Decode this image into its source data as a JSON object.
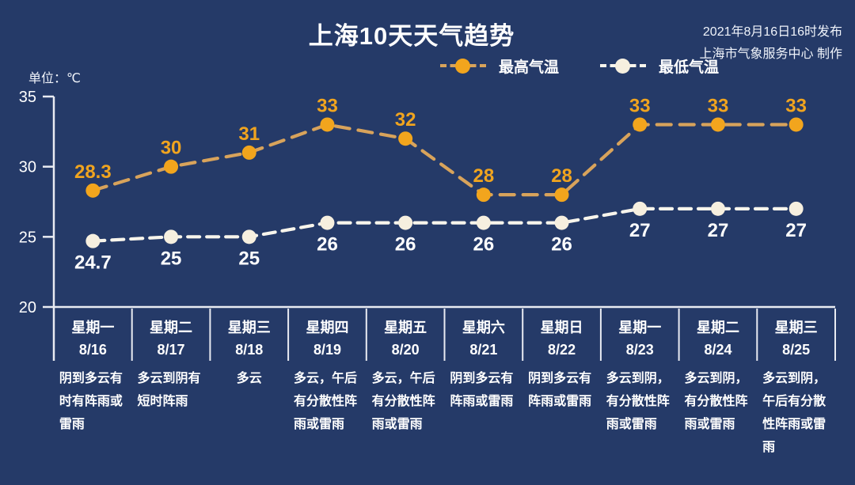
{
  "header": {
    "title": "上海10天天气趋势",
    "publish_line1": "2021年8月16日16时发布",
    "publish_line2": "上海市气象服务中心 制作",
    "unit_label": "单位：℃"
  },
  "colors": {
    "background": "#253A68",
    "axis": "#E9EBF2",
    "text": "#FFFFFF",
    "high_marker": "#F2A51D",
    "high_line": "#D8A35B",
    "high_label": "#F0A41F",
    "low_marker": "#F6EFDF",
    "low_line": "#F8F5EC",
    "low_label": "#FFFFFF"
  },
  "chart_data": {
    "type": "line",
    "title": "上海10天天气趋势",
    "unit": "℃",
    "ylim": [
      20,
      35
    ],
    "yticks": [
      35,
      30,
      25,
      20
    ],
    "grid": false,
    "legend_position": "top",
    "categories": [
      "8/16",
      "8/17",
      "8/18",
      "8/19",
      "8/20",
      "8/21",
      "8/22",
      "8/23",
      "8/24",
      "8/25"
    ],
    "series": [
      {
        "name": "最高气温",
        "values": [
          28.3,
          30,
          31,
          33,
          32,
          28,
          28,
          33,
          33,
          33
        ],
        "marker_color": "#F2A51D",
        "line_color": "#D8A35B",
        "label_color": "#F0A41F",
        "label_position": "above",
        "dash": "18 11"
      },
      {
        "name": "最低气温",
        "values": [
          24.7,
          25,
          25,
          26,
          26,
          26,
          26,
          27,
          27,
          27
        ],
        "marker_color": "#F6EFDF",
        "line_color": "#F8F5EC",
        "label_color": "#FFFFFF",
        "label_position": "below",
        "dash": "15 9"
      }
    ]
  },
  "days": [
    {
      "weekday": "星期一",
      "date": "8/16",
      "desc": "阴到多云有时有阵雨或雷雨"
    },
    {
      "weekday": "星期二",
      "date": "8/17",
      "desc": "多云到阴有短时阵雨"
    },
    {
      "weekday": "星期三",
      "date": "8/18",
      "desc": "多云"
    },
    {
      "weekday": "星期四",
      "date": "8/19",
      "desc": "多云，午后有分散性阵雨或雷雨"
    },
    {
      "weekday": "星期五",
      "date": "8/20",
      "desc": "多云，午后有分散性阵雨或雷雨"
    },
    {
      "weekday": "星期六",
      "date": "8/21",
      "desc": "阴到多云有阵雨或雷雨"
    },
    {
      "weekday": "星期日",
      "date": "8/22",
      "desc": "阴到多云有阵雨或雷雨"
    },
    {
      "weekday": "星期一",
      "date": "8/23",
      "desc": "多云到阴，有分散性阵雨或雷雨"
    },
    {
      "weekday": "星期二",
      "date": "8/24",
      "desc": "多云到阴，有分散性阵雨或雷雨"
    },
    {
      "weekday": "星期三",
      "date": "8/25",
      "desc": "多云到阴，午后有分散性阵雨或雷雨"
    }
  ]
}
